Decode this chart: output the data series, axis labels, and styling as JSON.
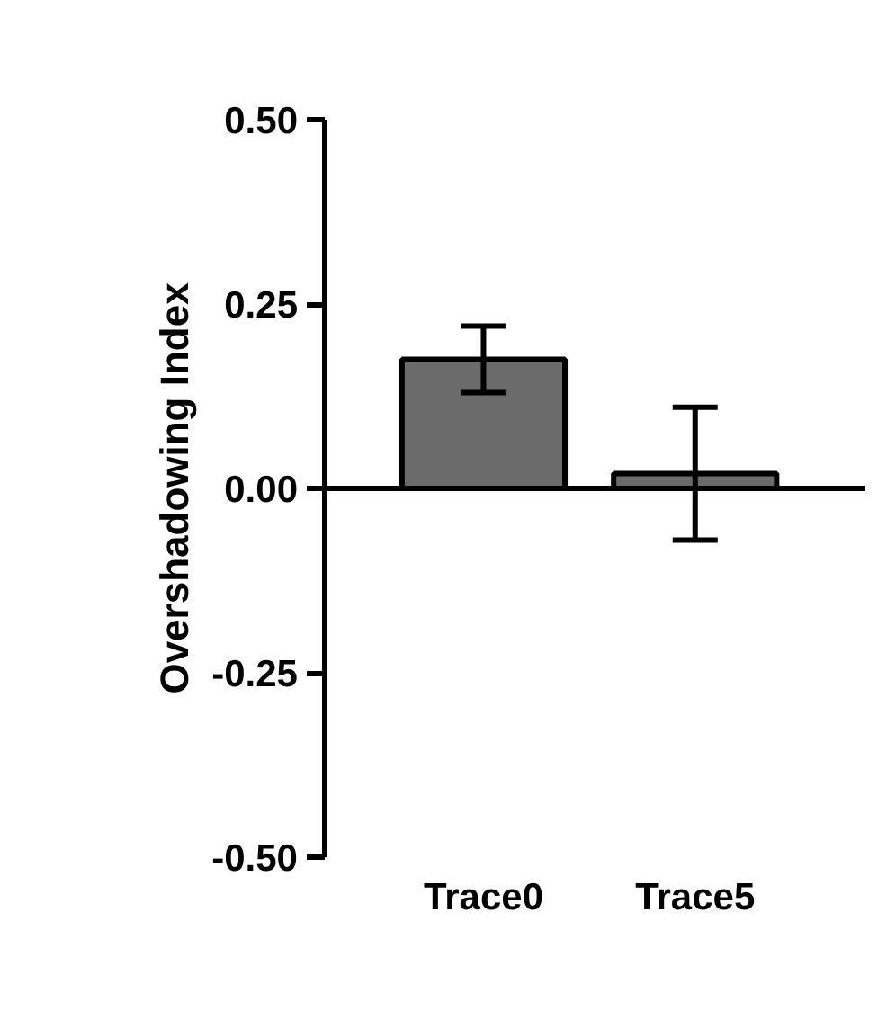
{
  "chart_data": {
    "type": "bar",
    "ylabel": "Overshadowing Index",
    "categories": [
      "Trace0",
      "Trace5"
    ],
    "values": [
      0.175,
      0.02
    ],
    "errors": [
      0.045,
      0.09
    ],
    "colors": [
      "#6b6b6b",
      "#6b6b6b"
    ],
    "ylim": [
      -0.5,
      0.5
    ],
    "yticks": [
      {
        "value": -0.5,
        "label": "-0.50"
      },
      {
        "value": -0.25,
        "label": "-0.25"
      },
      {
        "value": 0,
        "label": "0.00"
      },
      {
        "value": 0.25,
        "label": "0.25"
      },
      {
        "value": 0.5,
        "label": "0.50"
      }
    ]
  }
}
